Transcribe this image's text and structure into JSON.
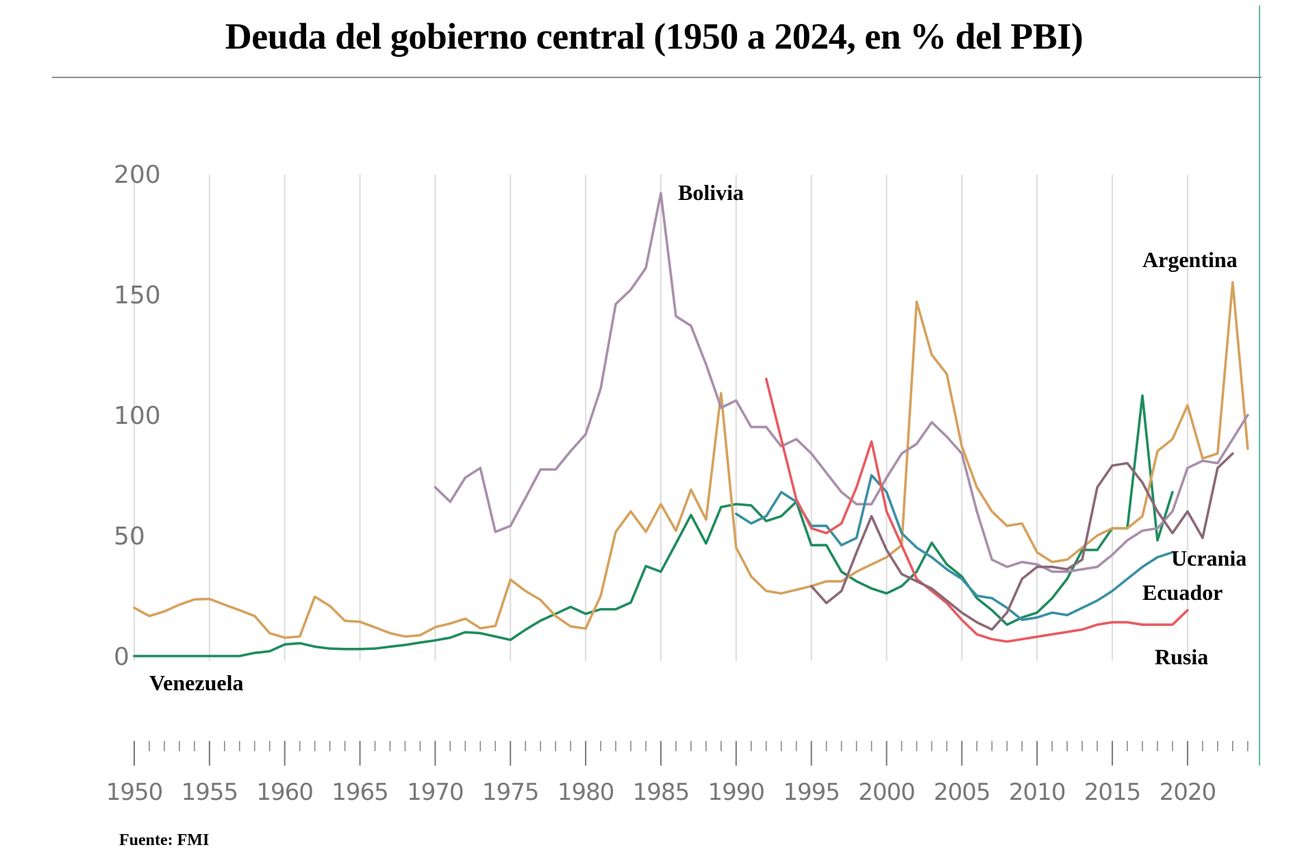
{
  "title": "Deuda del gobierno central (1950 a 2024, en % del PBI)",
  "source": "Fuente: FMI",
  "chart_data": {
    "type": "line",
    "title": "Deuda del gobierno central (1950 a 2024, en % del PBI)",
    "xlabel": "",
    "ylabel": "",
    "xlim": [
      1950,
      2024
    ],
    "ylim": [
      0,
      200
    ],
    "yticks": [
      0,
      50,
      100,
      150,
      200
    ],
    "xticks": [
      1950,
      1955,
      1960,
      1965,
      1970,
      1975,
      1980,
      1985,
      1990,
      1995,
      2000,
      2005,
      2010,
      2015,
      2020
    ],
    "ytick_labels": [
      "0",
      "50",
      "100",
      "150",
      "200"
    ],
    "xtick_labels": [
      "1950",
      "1955",
      "1960",
      "1965",
      "1970",
      "1975",
      "1980",
      "1985",
      "1990",
      "1995",
      "2000",
      "2005",
      "2010",
      "2015",
      "2020"
    ],
    "grid": "vertical",
    "legend": "inline-labels",
    "series": [
      {
        "name": "Argentina",
        "label": "Argentina",
        "color": "#d6a15c",
        "start_year": 1950,
        "values": [
          20,
          16.6,
          18.5,
          21.3,
          23.5,
          23.7,
          21.3,
          19,
          16.6,
          9.5,
          7.6,
          8.1,
          24.6,
          20.8,
          14.6,
          14.2,
          11.9,
          9.5,
          8.1,
          8.6,
          12,
          13.5,
          15.5,
          11.5,
          12.5,
          31.7,
          27,
          23.3,
          16.6,
          12.3,
          11.4,
          25,
          51.5,
          60,
          51.5,
          63,
          52,
          69,
          56.6,
          109,
          45,
          33,
          27,
          26,
          27.5,
          29,
          31,
          31,
          35,
          38,
          41,
          46,
          147,
          125,
          117,
          87,
          70,
          60,
          54,
          55,
          43,
          39,
          40,
          45,
          50,
          53,
          53,
          58,
          85,
          90,
          104,
          82,
          84,
          155,
          86
        ]
      },
      {
        "name": "Venezuela",
        "label": "Venezuela",
        "color": "#1e8c5e",
        "start_year": 1950,
        "values": [
          0,
          0,
          0,
          0,
          0,
          0,
          0,
          0,
          1.3,
          2,
          4.8,
          5.3,
          3.9,
          3.1,
          2.9,
          2.9,
          3.1,
          3.9,
          4.6,
          5.6,
          6.5,
          7.6,
          9.9,
          9.5,
          8.1,
          6.7,
          10.9,
          14.7,
          17.5,
          20.4,
          17.5,
          19.4,
          19.4,
          22.2,
          37.3,
          35,
          46.7,
          58.5,
          46.7,
          61.8,
          63,
          62.5,
          56,
          58,
          64,
          46,
          46,
          35,
          31,
          28,
          26,
          29,
          35,
          47,
          38,
          33,
          24,
          19,
          13,
          16,
          18,
          24,
          32,
          44,
          44,
          53,
          53,
          108,
          48,
          68
        ]
      },
      {
        "name": "Bolivia",
        "label": "Bolivia",
        "color": "#a98fab",
        "start_year": 1970,
        "values": [
          70,
          64,
          74,
          78,
          51.5,
          54,
          65.6,
          77.4,
          77.4,
          85,
          92,
          111,
          146,
          152,
          161,
          192,
          141,
          137,
          121,
          103,
          106,
          95,
          95,
          87,
          90,
          84,
          76,
          68,
          63,
          63,
          74,
          84,
          88,
          97,
          91,
          84,
          60,
          40,
          37,
          39,
          38,
          35,
          35,
          36,
          37,
          42,
          48,
          52,
          53,
          60,
          78,
          81,
          80,
          90,
          100
        ]
      },
      {
        "name": "Rusia",
        "label": "Rusia",
        "color": "#e85a60",
        "start_year": 1992,
        "values": [
          115,
          90,
          65,
          53,
          51,
          55,
          70,
          89,
          60,
          46,
          32,
          27,
          22,
          15,
          9,
          7,
          6,
          7,
          8,
          9,
          10,
          11,
          13,
          14,
          14,
          13,
          13,
          13,
          19
        ]
      },
      {
        "name": "Ecuador",
        "label": "Ecuador",
        "color": "#3a8fa3",
        "start_year": 1990,
        "values": [
          59,
          55,
          58,
          68,
          64,
          54,
          54,
          46,
          49,
          75,
          68,
          51,
          45,
          41,
          36,
          32,
          25,
          24,
          20,
          15,
          16,
          18,
          17,
          20,
          23,
          27,
          32,
          37,
          41,
          43
        ]
      },
      {
        "name": "Ucrania",
        "label": "Ucrania",
        "color": "#8b6878",
        "start_year": 1995,
        "values": [
          29,
          22,
          27,
          43,
          58,
          44,
          34,
          31,
          28,
          23,
          18,
          14,
          11,
          18,
          32,
          37,
          37,
          36,
          40,
          70,
          79,
          80,
          72,
          60,
          51,
          60,
          49,
          78,
          84
        ]
      }
    ]
  }
}
